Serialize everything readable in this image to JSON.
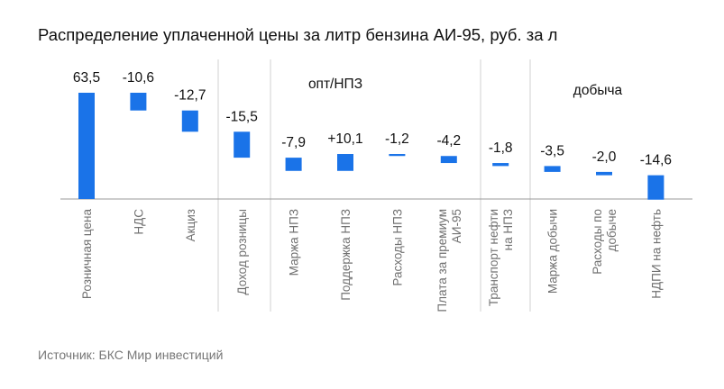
{
  "title": "Распределение уплаченной цены за литр бензина АИ-95, руб. за л",
  "source": "Источник: БКС Мир инвестиций",
  "colors": {
    "bar": "#1a73e8",
    "separator": "#d0d0d0",
    "axis": "#999999"
  },
  "chart_data": {
    "type": "bar",
    "subtype": "waterfall",
    "categories": [
      [
        "Розничная цена"
      ],
      [
        "НДС"
      ],
      [
        "Акциз"
      ],
      [
        "Доход розницы"
      ],
      [
        "Маржа НПЗ"
      ],
      [
        "Поддержка НПЗ"
      ],
      [
        "Расходы НПЗ"
      ],
      [
        "Плата за премиум",
        "АИ-95"
      ],
      [
        "Транспорт нефти",
        "на НПЗ"
      ],
      [
        "Маржа добычи"
      ],
      [
        "Расходы по",
        "добыче"
      ],
      [
        "НДПИ на нефть"
      ]
    ],
    "values": [
      63.5,
      -10.6,
      -12.7,
      -15.5,
      -7.9,
      10.1,
      -1.2,
      -4.2,
      -1.8,
      -3.5,
      -2.0,
      -14.6
    ],
    "data_labels": [
      "63,5",
      "-10,6",
      "-12,7",
      "-15,5",
      "-7,9",
      "+10,1",
      "-1,2",
      "-4,2",
      "-1,8",
      "-3,5",
      "-2,0",
      "-14,6"
    ],
    "group_labels": [
      "опт/НПЗ",
      "добыча"
    ],
    "ylim": [
      0,
      63.5
    ],
    "grid": false,
    "legend": "none"
  }
}
